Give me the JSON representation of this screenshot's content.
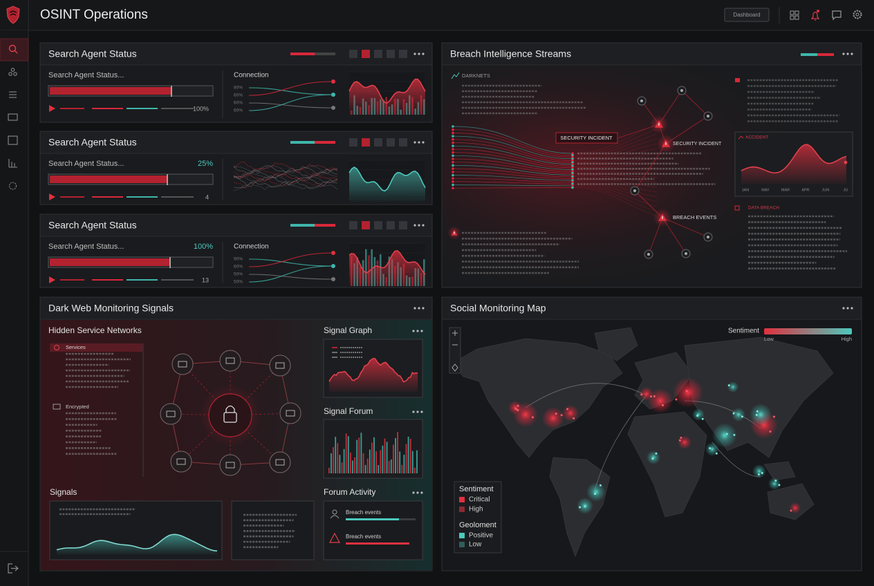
{
  "header": {
    "title": "OSINT Operations",
    "button": "Dashboard"
  },
  "agents": [
    {
      "title": "Search Agent Status",
      "label": "Search Agent Status...",
      "footer": "100%",
      "connection": "Connection",
      "ticks": [
        "80%",
        "60%",
        "60%",
        "60%"
      ]
    },
    {
      "title": "Search Agent Status",
      "label": "Search Agent Status...",
      "percent": "25%",
      "footer": "4"
    },
    {
      "title": "Search Agent Status",
      "label": "Search Agent Status...",
      "percent": "100%",
      "footer": "13",
      "connection": "Connection",
      "ticks": [
        "90%",
        "60%",
        "50%",
        "50%"
      ]
    }
  ],
  "breach": {
    "title": "Breach Intelligence Streams",
    "darknets": "DARKNETS",
    "incident_1": "SECURITY INCIDENT",
    "incident_2": "SECURITY INCIDENT",
    "events": "BREACH EVENTS",
    "chart_label": "ACCIDENT",
    "months": [
      "JAN",
      "MAY",
      "MAR",
      "APR",
      "JUN",
      "JU"
    ],
    "code_label": "DATA BREACH"
  },
  "darkweb": {
    "title": "Dark Web Monitoring Signals",
    "networks": "Hidden Service Networks",
    "services": "Services",
    "encrypted": "Encrypted",
    "signal_graph": "Signal Graph",
    "signal_forum": "Signal Forum",
    "signals": "Signals",
    "forum_activity": "Forum Activity",
    "breach_events_1": "Breach events",
    "breach_events_2": "Breach events"
  },
  "social": {
    "title": "Social Monitoring Map",
    "sentiment": "Sentiment",
    "low": "Low",
    "high": "High",
    "legend": {
      "sentiment_title": "Sentiment",
      "critical": "Critical",
      "high": "High",
      "geo_title": "Geoloment",
      "positive": "Positive",
      "low": "Low"
    }
  }
}
